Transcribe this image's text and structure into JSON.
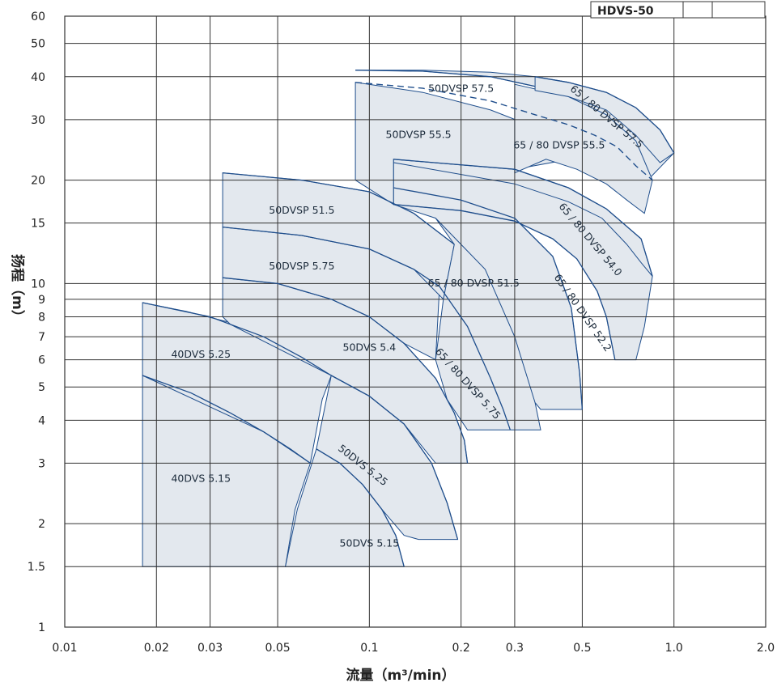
{
  "chart_data": {
    "type": "area",
    "model": "HDVS-50",
    "xlabel": "流量（m³/min）",
    "ylabel": "扬程（m）",
    "xscale": "log",
    "yscale": "log",
    "xlim": [
      0.01,
      2.0
    ],
    "ylim": [
      1,
      60
    ],
    "x_ticks": [
      0.01,
      0.02,
      0.03,
      0.05,
      0.1,
      0.2,
      0.3,
      0.5,
      1.0,
      2.0
    ],
    "x_tick_labels": [
      "0.01",
      "0.02",
      "0.03",
      "0.05",
      "0.1",
      "0.2",
      "0.3",
      "0.5",
      "1.0",
      "2.0"
    ],
    "y_ticks": [
      1,
      1.5,
      2,
      3,
      4,
      5,
      6,
      7,
      8,
      9,
      10,
      15,
      20,
      30,
      40,
      50,
      60
    ],
    "y_tick_labels": [
      "1",
      "1.5",
      "2",
      "3",
      "4",
      "5",
      "6",
      "7",
      "8",
      "9",
      "10",
      "15",
      "20",
      "30",
      "40",
      "50",
      "60"
    ],
    "grid": true,
    "colors": {
      "fill": "#e3e8ee",
      "curve": "#1f4e8c",
      "grid": "#333333"
    },
    "regions": [
      {
        "label": "40DVS 5.15",
        "label_at": [
          0.028,
          2.7
        ],
        "polygon": [
          [
            0.018,
            5.4
          ],
          [
            0.026,
            4.8
          ],
          [
            0.035,
            4.2
          ],
          [
            0.045,
            3.7
          ],
          [
            0.055,
            3.3
          ],
          [
            0.064,
            3.0
          ],
          [
            0.057,
            2.2
          ],
          [
            0.053,
            1.5
          ],
          [
            0.018,
            1.5
          ]
        ]
      },
      {
        "label": "40DVS 5.25",
        "label_at": [
          0.028,
          6.2
        ],
        "polygon": [
          [
            0.018,
            8.8
          ],
          [
            0.025,
            8.3
          ],
          [
            0.035,
            7.7
          ],
          [
            0.045,
            7.0
          ],
          [
            0.055,
            6.4
          ],
          [
            0.065,
            5.9
          ],
          [
            0.075,
            5.4
          ],
          [
            0.07,
            4.6
          ],
          [
            0.064,
            3.0
          ],
          [
            0.045,
            3.7
          ],
          [
            0.018,
            5.4
          ]
        ]
      },
      {
        "label": "50DVS 5.15",
        "label_at": [
          0.1,
          1.75
        ],
        "polygon": [
          [
            0.067,
            3.3
          ],
          [
            0.08,
            3.0
          ],
          [
            0.095,
            2.6
          ],
          [
            0.11,
            2.2
          ],
          [
            0.122,
            1.85
          ],
          [
            0.13,
            1.5
          ],
          [
            0.053,
            1.5
          ],
          [
            0.058,
            2.2
          ],
          [
            0.067,
            3.3
          ]
        ]
      },
      {
        "label": "50DVS 5.25",
        "label_at": [
          0.095,
          2.95
        ],
        "label_rotate": 38,
        "polygon": [
          [
            0.075,
            5.4
          ],
          [
            0.1,
            4.7
          ],
          [
            0.13,
            3.9
          ],
          [
            0.16,
            3.0
          ],
          [
            0.18,
            2.3
          ],
          [
            0.195,
            1.8
          ],
          [
            0.145,
            1.8
          ],
          [
            0.13,
            1.85
          ],
          [
            0.11,
            2.2
          ],
          [
            0.095,
            2.6
          ],
          [
            0.08,
            3.0
          ],
          [
            0.067,
            3.3
          ]
        ]
      },
      {
        "label": "50DVS 5.4",
        "label_at": [
          0.1,
          6.5
        ],
        "polygon": [
          [
            0.033,
            10.4
          ],
          [
            0.05,
            10.0
          ],
          [
            0.075,
            9.0
          ],
          [
            0.1,
            8.0
          ],
          [
            0.13,
            6.7
          ],
          [
            0.165,
            5.3
          ],
          [
            0.19,
            4.2
          ],
          [
            0.205,
            3.5
          ],
          [
            0.21,
            3.0
          ],
          [
            0.165,
            3.0
          ],
          [
            0.13,
            3.9
          ],
          [
            0.1,
            4.7
          ],
          [
            0.075,
            5.4
          ],
          [
            0.035,
            7.6
          ],
          [
            0.033,
            8.0
          ]
        ]
      },
      {
        "label": "50DVSP 5.75",
        "label_at": [
          0.06,
          11.2
        ],
        "polygon": [
          [
            0.033,
            14.6
          ],
          [
            0.06,
            13.8
          ],
          [
            0.1,
            12.6
          ],
          [
            0.14,
            11.0
          ],
          [
            0.17,
            9.8
          ],
          [
            0.165,
            6.0
          ],
          [
            0.13,
            6.7
          ],
          [
            0.1,
            8.0
          ],
          [
            0.075,
            9.0
          ],
          [
            0.05,
            10.0
          ],
          [
            0.033,
            10.4
          ]
        ]
      },
      {
        "label": "50DVSP 51.5",
        "label_at": [
          0.06,
          16.3
        ],
        "polygon": [
          [
            0.033,
            21.0
          ],
          [
            0.06,
            20.0
          ],
          [
            0.1,
            18.5
          ],
          [
            0.14,
            16.0
          ],
          [
            0.19,
            13.0
          ],
          [
            0.175,
            9.0
          ],
          [
            0.14,
            11.0
          ],
          [
            0.1,
            12.6
          ],
          [
            0.06,
            13.8
          ],
          [
            0.033,
            14.6
          ]
        ]
      },
      {
        "label": "65 / 80 DVSP 5.75",
        "label_at": [
          0.21,
          5.1
        ],
        "label_rotate": 48,
        "polygon": [
          [
            0.165,
            15.5
          ],
          [
            0.21,
            14.0
          ],
          [
            0.26,
            11.5
          ],
          [
            0.31,
            8.2
          ],
          [
            0.34,
            5.5
          ],
          [
            0.35,
            4.5
          ],
          [
            0.365,
            3.75
          ],
          [
            0.21,
            3.75
          ],
          [
            0.18,
            4.6
          ],
          [
            0.165,
            6.0
          ],
          [
            0.175,
            9.0
          ],
          [
            0.19,
            13.0
          ]
        ]
      },
      {
        "label": "65 / 80 DVSP 51.5",
        "label_at": [
          0.22,
          10.0
        ],
        "polygon": [
          [
            0.12,
            19.0
          ],
          [
            0.2,
            17.5
          ],
          [
            0.3,
            15.5
          ],
          [
            0.4,
            12.0
          ],
          [
            0.46,
            8.5
          ],
          [
            0.49,
            5.5
          ],
          [
            0.5,
            4.3
          ],
          [
            0.365,
            4.3
          ],
          [
            0.35,
            4.5
          ],
          [
            0.3,
            7.0
          ],
          [
            0.24,
            11.0
          ],
          [
            0.165,
            15.5
          ],
          [
            0.12,
            17.0
          ]
        ]
      },
      {
        "label": "65 / 80 DVSP 52.2",
        "label_at": [
          0.5,
          8.2
        ],
        "label_rotate": 55,
        "polygon": [
          [
            0.12,
            17.0
          ],
          [
            0.2,
            16.3
          ],
          [
            0.3,
            15.2
          ],
          [
            0.4,
            13.5
          ],
          [
            0.48,
            11.8
          ],
          [
            0.56,
            9.5
          ],
          [
            0.6,
            8.0
          ],
          [
            0.64,
            6.0
          ],
          [
            0.75,
            6.0
          ],
          [
            0.8,
            7.5
          ],
          [
            0.85,
            10.5
          ],
          [
            0.78,
            13.5
          ],
          [
            0.6,
            16.5
          ],
          [
            0.45,
            19.0
          ],
          [
            0.3,
            21.5
          ],
          [
            0.12,
            23.0
          ]
        ]
      },
      {
        "label": "65 / 80 DVSP 54.0",
        "label_at": [
          0.53,
          13.4
        ],
        "label_rotate": 50,
        "polygon": [
          [
            0.12,
            23.0
          ],
          [
            0.3,
            21.5
          ],
          [
            0.45,
            19.0
          ],
          [
            0.6,
            16.5
          ],
          [
            0.78,
            13.5
          ],
          [
            0.85,
            10.5
          ],
          [
            0.78,
            11.5
          ],
          [
            0.7,
            13.0
          ],
          [
            0.58,
            15.5
          ],
          [
            0.45,
            17.3
          ],
          [
            0.3,
            19.5
          ],
          [
            0.12,
            22.5
          ]
        ]
      },
      {
        "label": "50DVSP 55.5",
        "label_at": [
          0.145,
          27.0
        ],
        "polygon": [
          [
            0.09,
            38.5
          ],
          [
            0.15,
            36.0
          ],
          [
            0.25,
            32.0
          ],
          [
            0.35,
            28.5
          ],
          [
            0.45,
            25.5
          ],
          [
            0.52,
            23.5
          ],
          [
            0.3,
            21.5
          ],
          [
            0.12,
            23.0
          ],
          [
            0.12,
            17.0
          ],
          [
            0.09,
            20.0
          ]
        ]
      },
      {
        "label": "50DVSP 57.5",
        "label_at": [
          0.2,
          36.8
        ],
        "polygon": [
          [
            0.09,
            41.8
          ],
          [
            0.15,
            41.5
          ],
          [
            0.25,
            40.0
          ],
          [
            0.35,
            37.5
          ],
          [
            0.45,
            34.0
          ],
          [
            0.55,
            31.0
          ],
          [
            0.65,
            27.0
          ],
          [
            0.75,
            22.5
          ],
          [
            0.82,
            20.0
          ],
          [
            1.0,
            24.0
          ],
          [
            0.9,
            27.0
          ],
          [
            0.75,
            32.5
          ],
          [
            0.6,
            36.0
          ],
          [
            0.45,
            38.5
          ],
          [
            0.35,
            40.0
          ],
          [
            0.25,
            41.2
          ],
          [
            0.15,
            41.8
          ]
        ]
      },
      {
        "label": "65 / 80 DVSP 55.5",
        "label_at": [
          0.42,
          25.2
        ],
        "polygon": [
          [
            0.3,
            38.0
          ],
          [
            0.45,
            35.0
          ],
          [
            0.6,
            31.0
          ],
          [
            0.75,
            26.0
          ],
          [
            0.85,
            20.0
          ],
          [
            0.8,
            16.0
          ],
          [
            0.7,
            17.5
          ],
          [
            0.6,
            19.5
          ],
          [
            0.48,
            21.5
          ],
          [
            0.38,
            23.0
          ],
          [
            0.3,
            21.0
          ]
        ]
      },
      {
        "label": "65 / 80 DVSP 57.5",
        "label_at": [
          0.6,
          30.5
        ],
        "label_rotate": 40,
        "polygon": [
          [
            0.35,
            36.5
          ],
          [
            0.45,
            35.0
          ],
          [
            0.6,
            32.0
          ],
          [
            0.75,
            27.0
          ],
          [
            0.9,
            22.5
          ],
          [
            1.0,
            24.0
          ],
          [
            0.9,
            28.0
          ],
          [
            0.75,
            32.5
          ],
          [
            0.6,
            36.0
          ],
          [
            0.45,
            38.5
          ],
          [
            0.35,
            40.0
          ]
        ]
      }
    ],
    "curves": [
      {
        "points": [
          [
            0.018,
            5.4
          ],
          [
            0.026,
            4.8
          ],
          [
            0.035,
            4.2
          ],
          [
            0.045,
            3.7
          ],
          [
            0.055,
            3.3
          ],
          [
            0.064,
            3.0
          ]
        ]
      },
      {
        "points": [
          [
            0.018,
            8.8
          ],
          [
            0.03,
            8.0
          ],
          [
            0.045,
            7.0
          ],
          [
            0.06,
            6.1
          ],
          [
            0.075,
            5.4
          ]
        ]
      },
      {
        "points": [
          [
            0.067,
            3.3
          ],
          [
            0.08,
            3.0
          ],
          [
            0.095,
            2.6
          ],
          [
            0.11,
            2.2
          ],
          [
            0.122,
            1.85
          ],
          [
            0.13,
            1.5
          ]
        ]
      },
      {
        "points": [
          [
            0.075,
            5.4
          ],
          [
            0.1,
            4.7
          ],
          [
            0.13,
            3.9
          ],
          [
            0.16,
            3.0
          ],
          [
            0.18,
            2.3
          ],
          [
            0.195,
            1.8
          ]
        ]
      },
      {
        "points": [
          [
            0.033,
            10.4
          ],
          [
            0.05,
            10.0
          ],
          [
            0.075,
            9.0
          ],
          [
            0.1,
            8.0
          ],
          [
            0.13,
            6.7
          ],
          [
            0.165,
            5.3
          ],
          [
            0.19,
            4.2
          ],
          [
            0.205,
            3.5
          ],
          [
            0.21,
            3.0
          ]
        ]
      },
      {
        "points": [
          [
            0.033,
            14.6
          ],
          [
            0.06,
            13.8
          ],
          [
            0.1,
            12.6
          ],
          [
            0.14,
            11.0
          ],
          [
            0.17,
            9.8
          ],
          [
            0.21,
            7.5
          ],
          [
            0.25,
            5.3
          ],
          [
            0.275,
            4.3
          ],
          [
            0.29,
            3.75
          ]
        ]
      },
      {
        "points": [
          [
            0.033,
            21.0
          ],
          [
            0.06,
            20.0
          ],
          [
            0.1,
            18.5
          ],
          [
            0.14,
            16.0
          ],
          [
            0.19,
            13.0
          ]
        ]
      },
      {
        "points": [
          [
            0.12,
            19.0
          ],
          [
            0.2,
            17.5
          ],
          [
            0.3,
            15.5
          ],
          [
            0.4,
            12.0
          ],
          [
            0.46,
            8.5
          ],
          [
            0.49,
            5.5
          ],
          [
            0.5,
            4.3
          ]
        ]
      },
      {
        "points": [
          [
            0.12,
            17.0
          ],
          [
            0.2,
            16.3
          ],
          [
            0.3,
            15.2
          ],
          [
            0.4,
            13.5
          ],
          [
            0.48,
            11.8
          ],
          [
            0.56,
            9.5
          ],
          [
            0.6,
            8.0
          ],
          [
            0.64,
            6.0
          ]
        ]
      },
      {
        "points": [
          [
            0.12,
            23.0
          ],
          [
            0.3,
            21.5
          ],
          [
            0.45,
            19.0
          ],
          [
            0.6,
            16.5
          ],
          [
            0.78,
            13.5
          ],
          [
            0.85,
            10.5
          ]
        ]
      },
      {
        "points": [
          [
            0.09,
            41.8
          ],
          [
            0.15,
            41.5
          ],
          [
            0.25,
            40.0
          ],
          [
            0.35,
            37.5
          ]
        ]
      },
      {
        "points": [
          [
            0.35,
            40.0
          ],
          [
            0.45,
            38.5
          ],
          [
            0.6,
            36.0
          ],
          [
            0.75,
            32.5
          ],
          [
            0.9,
            28.0
          ],
          [
            1.0,
            24.0
          ]
        ]
      }
    ],
    "dashed_curve": {
      "points": [
        [
          0.09,
          38.5
        ],
        [
          0.15,
          37.0
        ],
        [
          0.25,
          34.0
        ],
        [
          0.35,
          31.0
        ],
        [
          0.45,
          29.0
        ],
        [
          0.55,
          27.0
        ],
        [
          0.65,
          25.0
        ],
        [
          0.75,
          22.0
        ],
        [
          0.85,
          20.0
        ]
      ]
    }
  },
  "legend": {
    "model_label": "HDVS-50"
  }
}
